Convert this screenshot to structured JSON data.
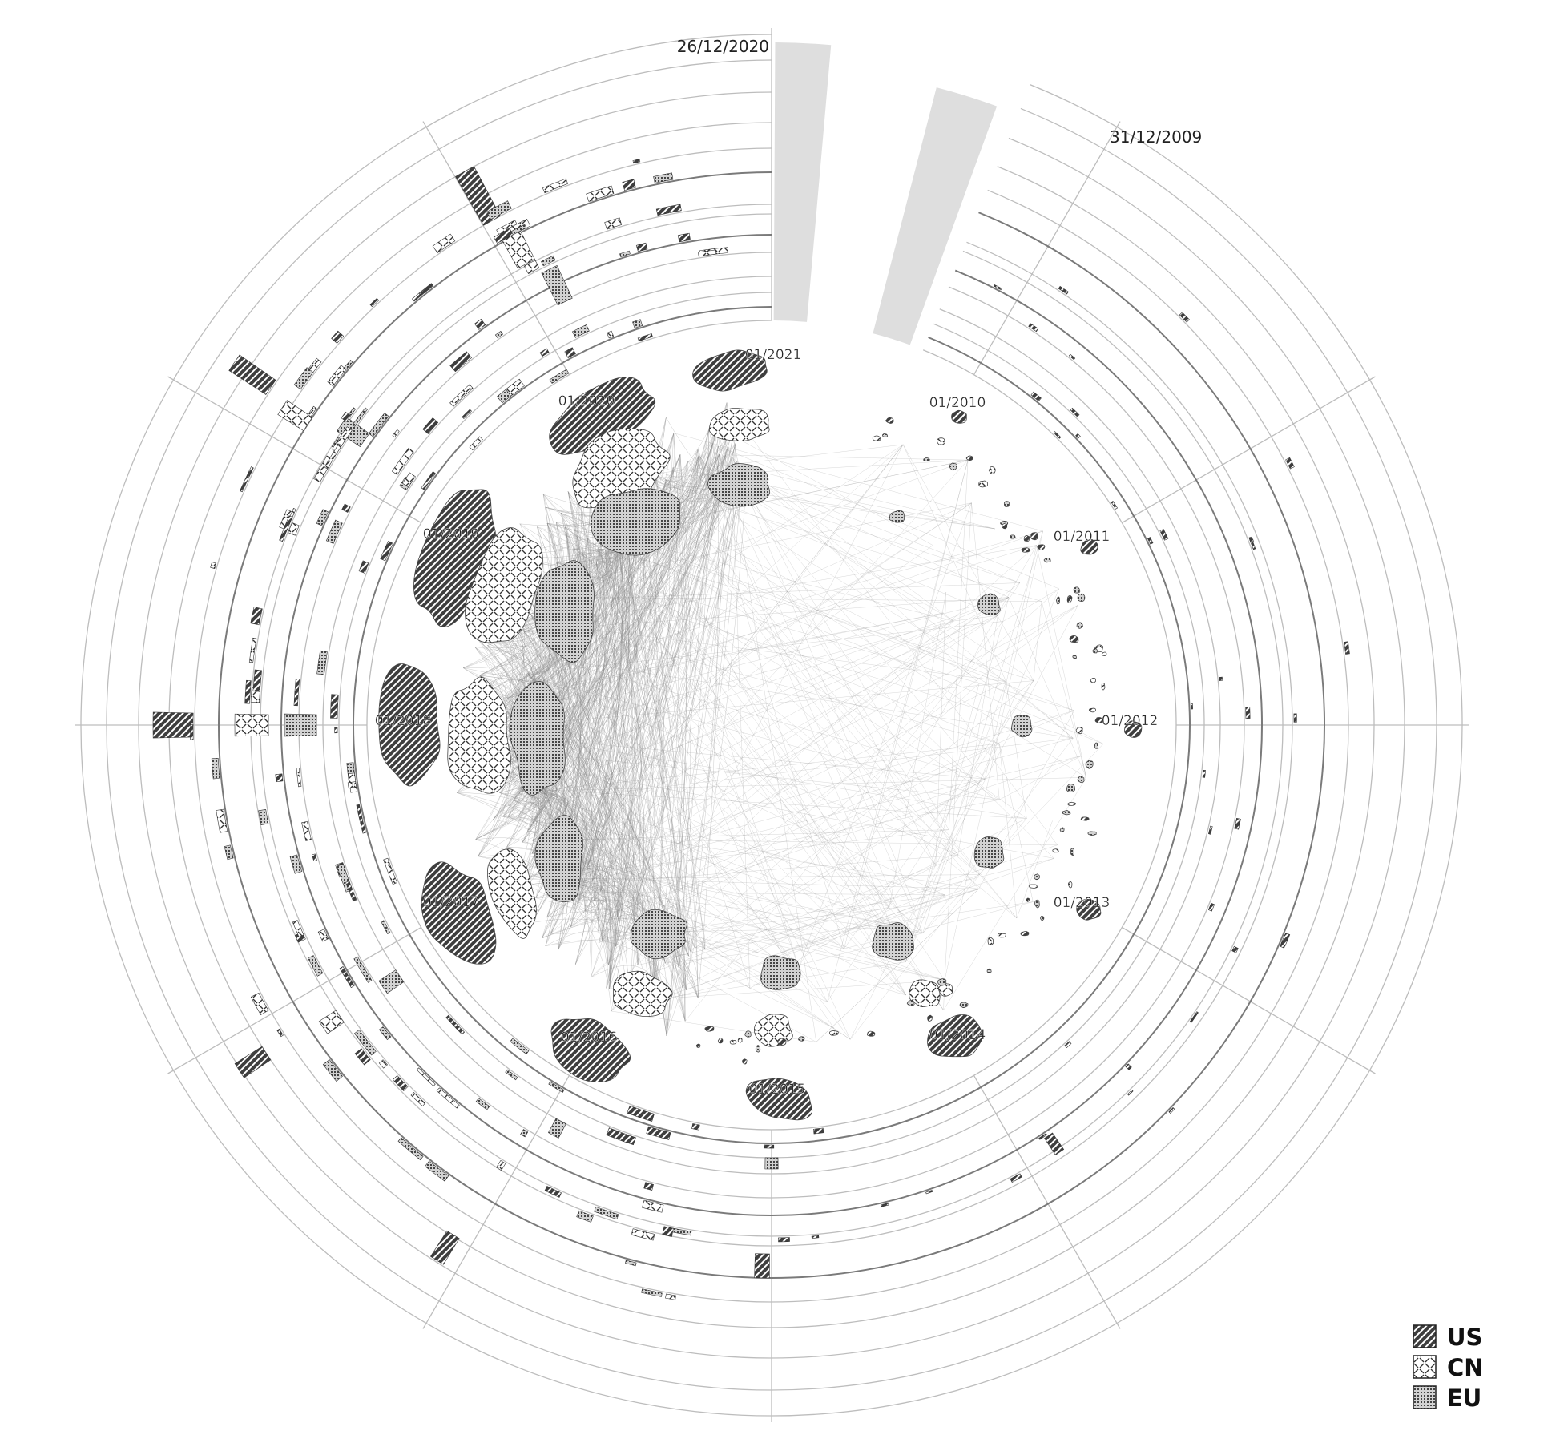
{
  "outer_labels": {
    "start_date": "31/12/2009",
    "end_date": "26/12/2020"
  },
  "year_labels": [
    "01/2010",
    "01/2011",
    "01/2012",
    "01/2013",
    "01/2014",
    "01/2015",
    "01/2016",
    "01/2017",
    "01/2018",
    "01/2019",
    "01/2020",
    "01/2021"
  ],
  "legend": [
    {
      "label": "US",
      "pattern": "us"
    },
    {
      "label": "CN",
      "pattern": "cn"
    },
    {
      "label": "EU",
      "pattern": "eu"
    }
  ],
  "colors": {
    "ring": "#bdbdbd",
    "ring_dark": "#7a7a7a",
    "edge": "#8c8c8c",
    "gap_fill": "#dedede",
    "us_fill": "#3e3e3e"
  }
}
